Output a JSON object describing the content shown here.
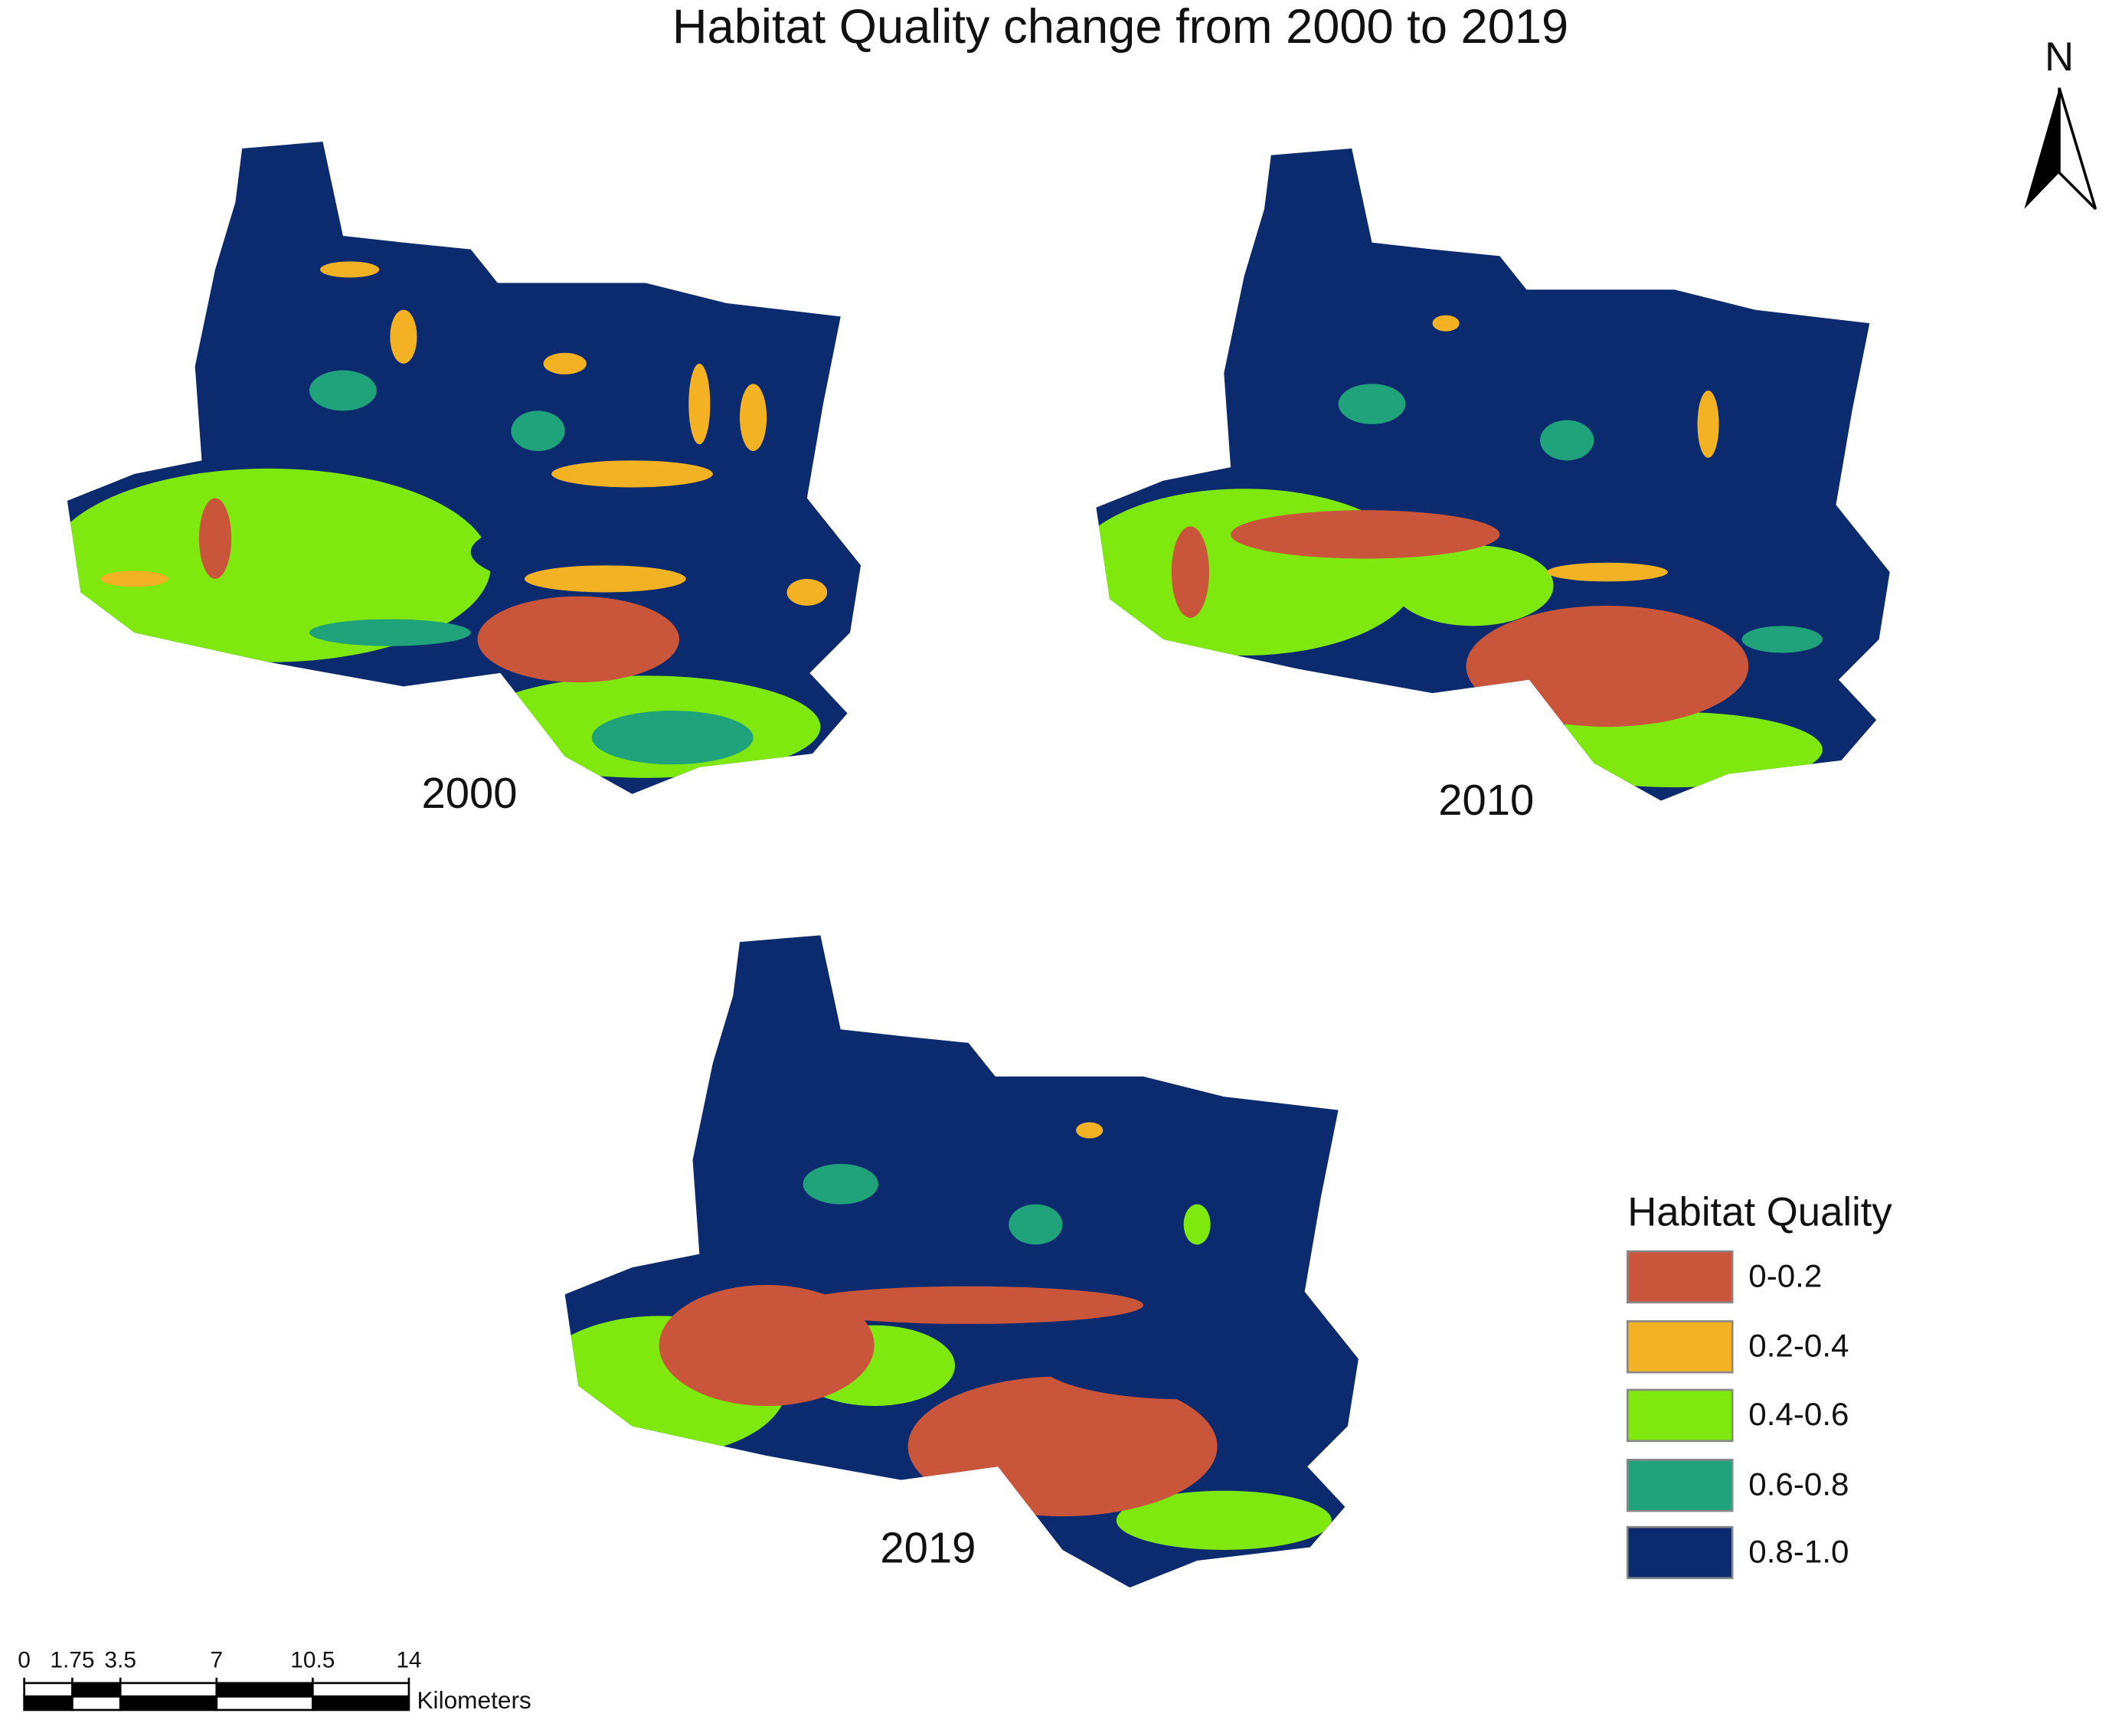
{
  "title": "Habitat Quality change from 2000 to 2019",
  "north_arrow": "N",
  "maps": [
    {
      "label": "2000"
    },
    {
      "label": "2010"
    },
    {
      "label": "2019"
    }
  ],
  "legend": {
    "title": "Habitat Quality",
    "items": [
      {
        "label": "0-0.2",
        "color": "#c9553b"
      },
      {
        "label": "0.2-0.4",
        "color": "#f2b224"
      },
      {
        "label": "0.4-0.6",
        "color": "#7fe80e"
      },
      {
        "label": "0.6-0.8",
        "color": "#20a27a"
      },
      {
        "label": "0.8-1.0",
        "color": "#0c2a6e"
      }
    ]
  },
  "scale_bar": {
    "ticks": [
      0,
      1.75,
      3.5,
      7,
      10.5,
      14
    ],
    "unit": "Kilometers"
  }
}
